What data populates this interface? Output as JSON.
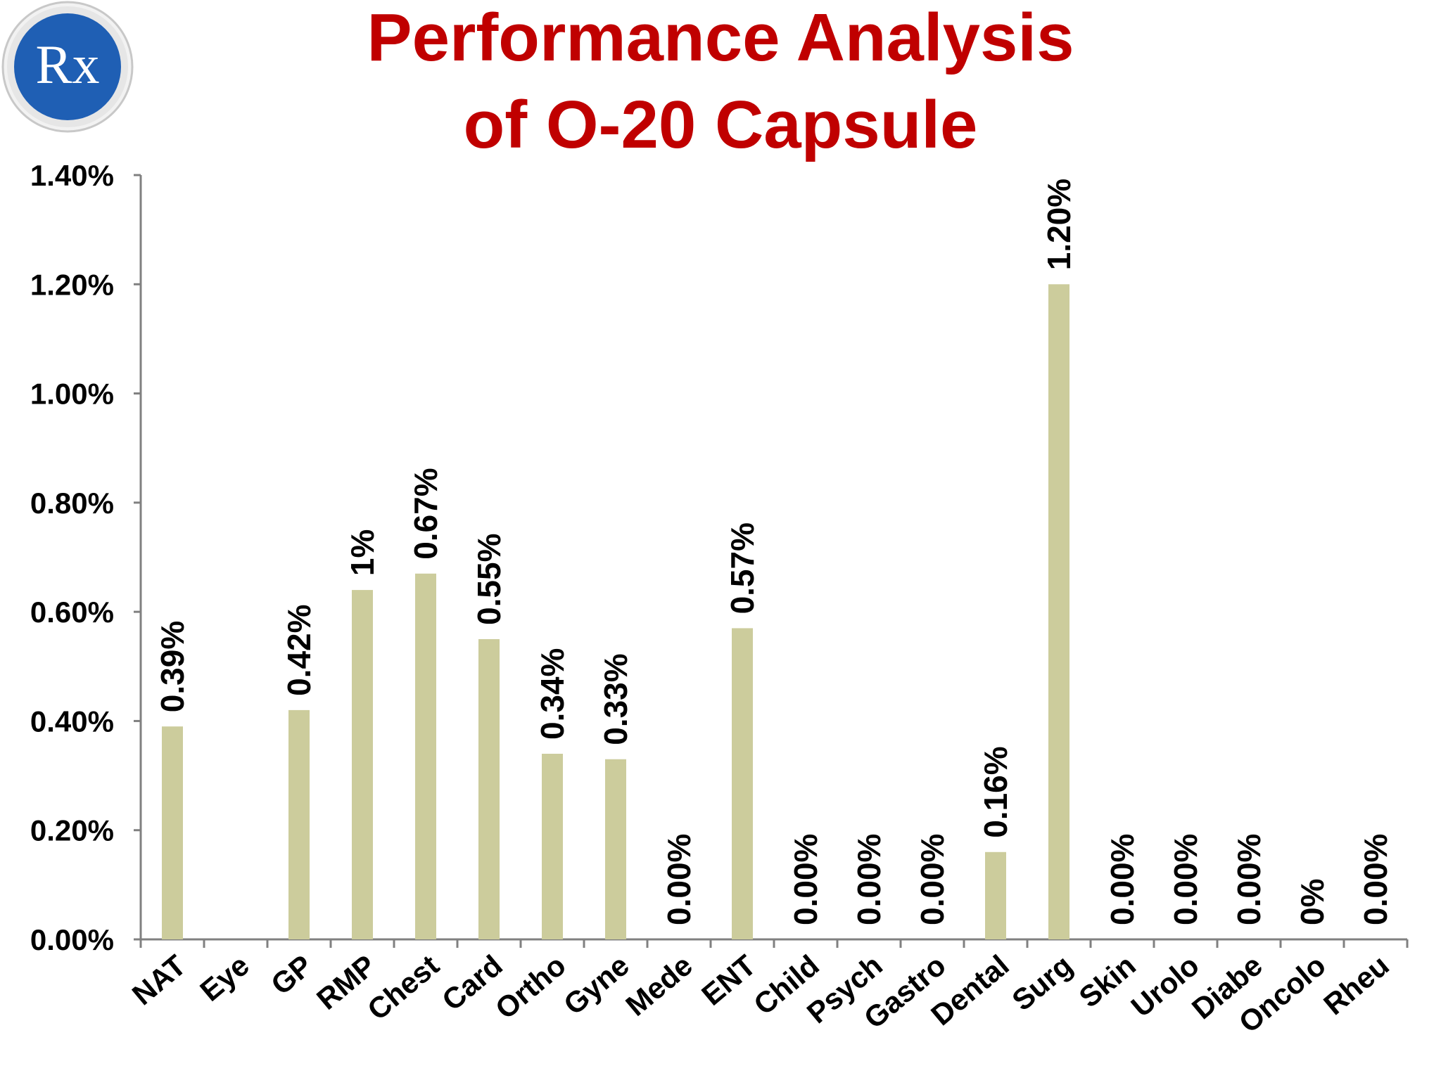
{
  "title": {
    "line1": "Performance Analysis",
    "line2": "of O-20 Capsule"
  },
  "logo": {
    "text": "Rx",
    "icon": "rx-prescription-icon"
  },
  "colors": {
    "title": "#c00000",
    "bar": "#cccc9c",
    "axis": "#808080",
    "logo_fill": "#1f5fb4"
  },
  "chart_data": {
    "type": "bar",
    "categories": [
      "NAT",
      "Eye",
      "GP",
      "RMP",
      "Chest",
      "Card",
      "Ortho",
      "Gyne",
      "Mede",
      "ENT",
      "Child",
      "Psych",
      "Gastro",
      "Dental",
      "Surg",
      "Skin",
      "Urolo",
      "Diabe",
      "Oncolo",
      "Rheu"
    ],
    "values": [
      0.39,
      null,
      0.42,
      0.64,
      0.67,
      0.55,
      0.34,
      0.33,
      0.0,
      0.57,
      0.0,
      0.0,
      0.0,
      0.16,
      1.2,
      0.0,
      0.0,
      0.0,
      0,
      0.0
    ],
    "data_labels": [
      "0.39%",
      "",
      "0.42%",
      "1%",
      "0.67%",
      "0.55%",
      "0.34%",
      "0.33%",
      "0.00%",
      "0.57%",
      "0.00%",
      "0.00%",
      "0.00%",
      "0.16%",
      "1.20%",
      "0.00%",
      "0.00%",
      "0.00%",
      "0%",
      "0.00%"
    ],
    "ylim": [
      0,
      1.4
    ],
    "yticks": [
      0,
      0.2,
      0.4,
      0.6,
      0.8,
      1.0,
      1.2,
      1.4
    ],
    "ytick_labels": [
      "0.00%",
      "0.20%",
      "0.40%",
      "0.60%",
      "0.80%",
      "1.00%",
      "1.20%",
      "1.40%"
    ],
    "title": "Performance Analysis of O-20 Capsule",
    "xlabel": "",
    "ylabel": "",
    "grid": false,
    "legend": "none"
  }
}
